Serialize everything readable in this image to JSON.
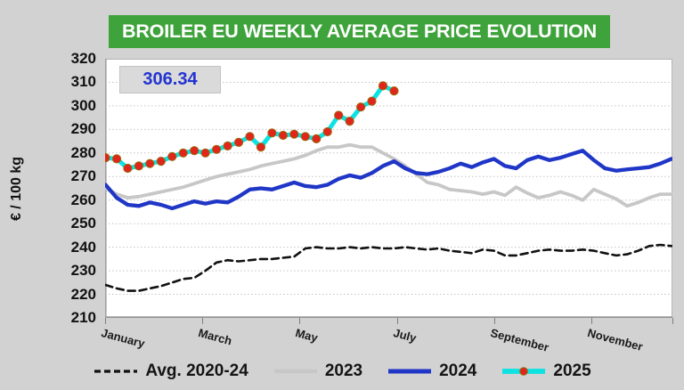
{
  "chart_data": {
    "type": "line",
    "title": "BROILER EU WEEKLY AVERAGE PRICE EVOLUTION",
    "ylabel": "€ / 100 kg",
    "xlabel": "",
    "ylim": [
      210,
      320
    ],
    "y_ticks": [
      320,
      310,
      300,
      290,
      280,
      270,
      260,
      250,
      240,
      230,
      220,
      210
    ],
    "x_tick_labels": [
      "January",
      "March",
      "May",
      "July",
      "September",
      "November"
    ],
    "x_unit": "week of year (52 weeks)",
    "grid": "horizontal dotted gridlines",
    "legend_position": "bottom",
    "annotation": {
      "label": "306.34",
      "refers_to": "latest 2025 weekly price"
    },
    "colors": {
      "background": "#d2d2d2",
      "plot_background": "#ffffff",
      "title_background": "#3fa33c",
      "title_text": "#ffffff",
      "annotation_text": "#2334d0",
      "annotation_box": "#dadada"
    },
    "series": [
      {
        "name": "Avg. 2020-24",
        "color": "#111111",
        "style": "dashed",
        "values": [
          224,
          222.5,
          221.5,
          221.5,
          222.5,
          223.5,
          225,
          226.5,
          227,
          230,
          233.5,
          234.5,
          234,
          234.5,
          235,
          235,
          235.5,
          236,
          239.5,
          240,
          239.5,
          239.5,
          240,
          239.5,
          240,
          239.5,
          239.5,
          240,
          239.5,
          239,
          239.5,
          238.5,
          238,
          237.5,
          239,
          238.5,
          236.5,
          236.5,
          237.5,
          238.5,
          239,
          238.5,
          238.5,
          239,
          238.5,
          237.5,
          236.5,
          237,
          238.5,
          240.5,
          241,
          240.5
        ]
      },
      {
        "name": "2023",
        "color": "#c7c7c7",
        "style": "solid",
        "values": [
          265,
          262.5,
          261,
          261.5,
          262.5,
          263.5,
          264.5,
          265.5,
          267,
          268.5,
          270,
          271,
          272,
          273,
          274.5,
          275.5,
          276.5,
          277.5,
          279,
          281,
          282.5,
          282.5,
          283.5,
          282.5,
          282.5,
          280,
          277.5,
          274.5,
          271,
          267.5,
          266.5,
          264.5,
          264,
          263.5,
          262.5,
          263.5,
          262,
          265.5,
          263,
          261,
          262,
          263.5,
          262,
          260,
          264.5,
          262.5,
          260.5,
          257.5,
          259,
          261,
          262.5,
          262.5
        ]
      },
      {
        "name": "2024",
        "color": "#1f36c7",
        "style": "solid",
        "values": [
          266.5,
          261,
          258,
          257.5,
          259,
          258,
          256.5,
          258,
          259.5,
          258.5,
          259.5,
          259,
          261.5,
          264.5,
          265,
          264.5,
          266,
          267.5,
          266,
          265.5,
          266.5,
          269,
          270.5,
          269.5,
          271.5,
          274.5,
          276.5,
          273.5,
          271.5,
          271,
          272,
          273.5,
          275.5,
          274,
          276,
          277.5,
          274.5,
          273.5,
          277,
          278.5,
          277,
          278,
          279.5,
          281,
          277,
          273.5,
          272.5,
          273,
          273.5,
          274,
          275.5,
          277.5
        ]
      },
      {
        "name": "2025",
        "color": "#0de2e2",
        "style": "solid-with-markers",
        "marker_color": "#e1251b",
        "values": [
          278,
          277.5,
          273.5,
          274.5,
          275.5,
          276.5,
          278.5,
          280,
          281,
          280,
          281.5,
          283,
          284.5,
          287,
          282.5,
          288.5,
          287.5,
          288,
          287,
          286,
          289,
          296,
          293.5,
          299.5,
          302,
          308.5,
          306.34
        ]
      }
    ]
  }
}
